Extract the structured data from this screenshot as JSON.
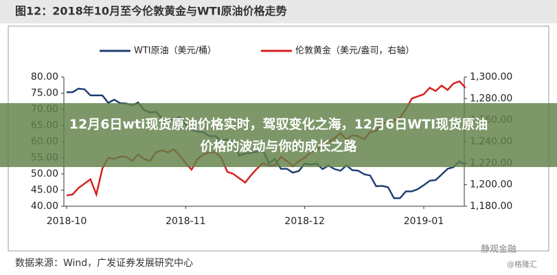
{
  "chart_data": {
    "type": "line",
    "title": "图12：2018年10月至今伦敦黄金与WTI原油价格走势",
    "source": "数据来源：Wind，广发证券发展研究中心",
    "watermarks": [
      "静观金融",
      "@格隆汇"
    ],
    "categories": [
      "2018-10",
      null,
      null,
      null,
      null,
      null,
      null,
      null,
      null,
      null,
      null,
      null,
      null,
      null,
      null,
      null,
      null,
      null,
      null,
      null,
      "2018-11",
      null,
      null,
      null,
      null,
      null,
      null,
      null,
      null,
      null,
      null,
      null,
      null,
      null,
      null,
      null,
      null,
      null,
      null,
      null,
      "2018-12",
      null,
      null,
      null,
      null,
      null,
      null,
      null,
      null,
      null,
      null,
      null,
      null,
      null,
      null,
      null,
      null,
      null,
      null,
      null,
      "2019-01",
      null,
      null,
      null,
      null,
      null,
      null,
      null
    ],
    "series": [
      {
        "name": "WTI原油（美元/桶）",
        "color": "#1f3f73",
        "values": [
          75.3,
          75.3,
          76.4,
          76.2,
          74.3,
          74.3,
          74.3,
          72.0,
          73.0,
          71.9,
          71.8,
          71.2,
          72.1,
          69.8,
          69.0,
          69.2,
          67.3,
          66.5,
          66.8,
          67.6,
          65.3,
          63.7,
          63.1,
          62.9,
          61.7,
          61.7,
          60.2,
          60.7,
          59.9,
          55.7,
          56.3,
          56.5,
          56.8,
          57.2,
          53.4,
          54.6,
          51.6,
          51.6,
          50.4,
          50.9,
          53.2,
          52.9,
          53.2,
          51.5,
          52.6,
          51.5,
          51.0,
          52.6,
          51.2,
          51.0,
          49.9,
          49.5,
          46.2,
          46.3,
          45.9,
          42.5,
          42.5,
          44.6,
          44.6,
          45.3,
          46.5,
          47.9,
          48.1,
          49.8,
          51.6,
          52.1,
          53.9,
          52.8
        ]
      },
      {
        "name": "伦敦黄金（美元/盎司，右轴）",
        "color": "#d62020",
        "axis": "y2",
        "values": [
          1190,
          1191,
          1197,
          1201,
          1205,
          1191,
          1215,
          1225,
          1224,
          1226,
          1226,
          1222,
          1228,
          1224,
          1222,
          1230,
          1232,
          1230,
          1233,
          1227,
          1220,
          1214,
          1224,
          1228,
          1230,
          1230,
          1225,
          1212,
          1210,
          1206,
          1202,
          1209,
          1215,
          1220,
          1218,
          1218,
          1226,
          1222,
          1217,
          1222,
          1225,
          1230,
          1232,
          1237,
          1240,
          1243,
          1248,
          1242,
          1246,
          1245,
          1242,
          1249,
          1250,
          1257,
          1258,
          1260,
          1262,
          1270,
          1280,
          1282,
          1284,
          1290,
          1287,
          1292,
          1288,
          1294,
          1296,
          1290
        ]
      }
    ],
    "ylim": [
      40,
      80
    ],
    "yticks": [
      {
        "value": 40,
        "label": "40.00"
      },
      {
        "value": 45,
        "label": "45.00"
      },
      {
        "value": 50,
        "label": "50.00"
      },
      {
        "value": 55,
        "label": "55.00"
      },
      {
        "value": 60,
        "label": "60.00"
      },
      {
        "value": 65,
        "label": "65.00"
      },
      {
        "value": 70,
        "label": "70.00"
      },
      {
        "value": 75,
        "label": "75.00"
      },
      {
        "value": 80,
        "label": "80.00"
      }
    ],
    "y2lim": [
      1180,
      1300
    ],
    "y2ticks": [
      {
        "value": 1180,
        "label": "1,180.00"
      },
      {
        "value": 1200,
        "label": "1,200.00"
      },
      {
        "value": 1220,
        "label": "1,220.00"
      },
      {
        "value": 1240,
        "label": "1,240.00"
      },
      {
        "value": 1260,
        "label": "1,260.00"
      },
      {
        "value": 1280,
        "label": "1,280.00"
      },
      {
        "value": 1300,
        "label": "1,300.00"
      }
    ],
    "grid": false,
    "legend": "top"
  },
  "banner": {
    "text": "12月6日wti现货原油价格实时，驾驭变化之海，12月6日WTI现货原油价格的波动与你的成长之路"
  }
}
